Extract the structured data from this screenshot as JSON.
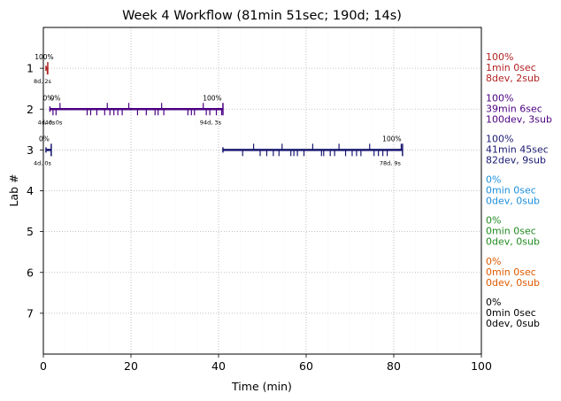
{
  "chart_data": {
    "type": "timeline",
    "title": "Week 4 Workflow (81min 51sec; 190d; 14s)",
    "xlabel": "Time (min)",
    "ylabel": "Lab #",
    "xlim": [
      0,
      100
    ],
    "ylim": [
      8,
      0
    ],
    "xticks": [
      "0",
      "20",
      "40",
      "60",
      "80",
      "100"
    ],
    "yticks": [
      "1",
      "2",
      "3",
      "4",
      "5",
      "6",
      "7"
    ],
    "grid": true,
    "lanes": [
      {
        "lab": 1,
        "color": "#b22222",
        "segments": [
          [
            0.6,
            1.0
          ]
        ],
        "ticks": [
          0.9
        ],
        "start_label": "100%",
        "start_sub": "8d, 2s",
        "end_label": "",
        "end_sub": "",
        "side_percent": "100%",
        "side_time": "1min 0sec",
        "side_count": "8dev, 2sub"
      },
      {
        "lab": 2,
        "color": "#4b0082",
        "segments": [
          [
            1.5,
            41.0
          ]
        ],
        "ticks": [
          2.2,
          2.9,
          3.8,
          10.0,
          10.8,
          12.2,
          14.0,
          14.6,
          15.2,
          16.1,
          17.0,
          18.0,
          19.5,
          21.5,
          23.5,
          25.5,
          26.2,
          27.0,
          27.5,
          33.0,
          33.8,
          34.5,
          36.5,
          37.2,
          38.0,
          39.5,
          40.7
        ],
        "start_label": "0%",
        "start_sub": "4d, 0s",
        "start_label2": "0%",
        "start_sub2": "4d, 0s",
        "end_label": "100%",
        "end_sub": "94d, 3s",
        "side_percent": "100%",
        "side_time": "39min 6sec",
        "side_count": "100dev, 3sub"
      },
      {
        "lab": 3,
        "color": "#191970",
        "segments": [
          [
            0.6,
            1.8
          ],
          [
            41.0,
            82.0
          ]
        ],
        "ticks": [
          1.8,
          45.5,
          48.0,
          49.5,
          51.0,
          52.5,
          53.8,
          54.5,
          56.5,
          57.2,
          58.0,
          59.5,
          61.5,
          63.5,
          64.0,
          65.5,
          66.5,
          67.5,
          69.0,
          70.5,
          71.5,
          72.5,
          74.5,
          75.5,
          76.5,
          77.5,
          78.5,
          81.7
        ],
        "start_label": "0%",
        "start_sub": "4d, 0s",
        "end_label": "100%",
        "end_sub": "78d, 9s",
        "side_percent": "100%",
        "side_time": "41min 45sec",
        "side_count": "82dev, 9sub"
      },
      {
        "lab": 4,
        "color": "#1e90dc",
        "segments": [],
        "ticks": [],
        "side_percent": "0%",
        "side_time": "0min 0sec",
        "side_count": "0dev, 0sub"
      },
      {
        "lab": 5,
        "color": "#228b22",
        "segments": [],
        "ticks": [],
        "side_percent": "0%",
        "side_time": "0min 0sec",
        "side_count": "0dev, 0sub"
      },
      {
        "lab": 6,
        "color": "#e05a00",
        "segments": [],
        "ticks": [],
        "side_percent": "0%",
        "side_time": "0min 0sec",
        "side_count": "0dev, 0sub"
      },
      {
        "lab": 7,
        "color": "#000000",
        "segments": [],
        "ticks": [],
        "side_percent": "0%",
        "side_time": "0min 0sec",
        "side_count": "0dev, 0sub"
      }
    ]
  }
}
